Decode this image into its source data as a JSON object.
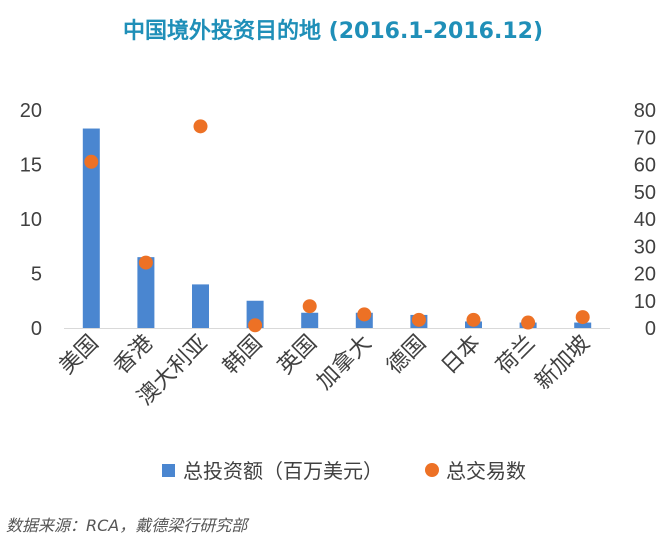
{
  "chart_data": {
    "type": "bar",
    "title": "中国境外投资目的地 (2016.1-2016.12)",
    "categories": [
      "美国",
      "香港",
      "澳大利亚",
      "韩国",
      "英国",
      "加拿大",
      "德国",
      "日本",
      "荷兰",
      "新加坡"
    ],
    "series": [
      {
        "name": "总投资额（百万美元）",
        "type": "bar",
        "axis": "left",
        "color": "#4a86d0",
        "values": [
          18.3,
          6.5,
          4.0,
          2.5,
          1.4,
          1.4,
          1.2,
          0.6,
          0.5,
          0.5
        ]
      },
      {
        "name": "总交易数",
        "type": "scatter",
        "axis": "right",
        "color": "#ed7125",
        "values": [
          61,
          24,
          74,
          1,
          8,
          5,
          3,
          3,
          2,
          4
        ]
      }
    ],
    "y_left": {
      "min": 0,
      "max": 20,
      "ticks": [
        "0",
        "5",
        "10",
        "15",
        "20"
      ]
    },
    "y_right": {
      "min": 0,
      "max": 80,
      "ticks": [
        "0",
        "10",
        "20",
        "30",
        "40",
        "50",
        "60",
        "70",
        "80"
      ]
    },
    "grid": false,
    "legend_position": "bottom"
  },
  "source": "数据来源：RCA，戴德梁行研究部"
}
